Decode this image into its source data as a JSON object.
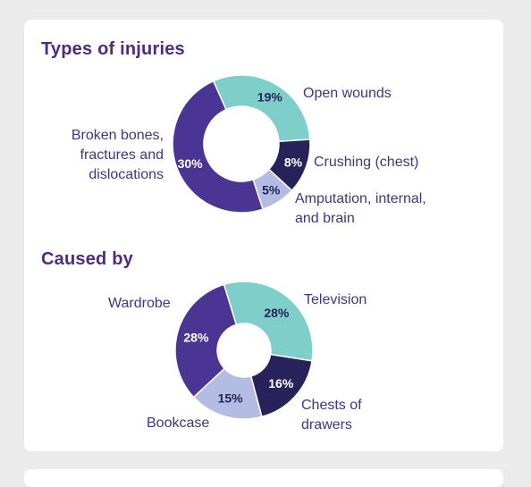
{
  "chart_data": [
    {
      "type": "pie",
      "title": "Types of injuries",
      "categories": [
        "Open wounds",
        "Crushing (chest)",
        "Amputation, internal, and brain",
        "Broken bones, fractures and dislocations"
      ],
      "values": [
        19,
        8,
        5,
        30
      ],
      "value_labels": [
        "19%",
        "8%",
        "5%",
        "30%"
      ],
      "colors": [
        "#7ecfc9",
        "#27235a",
        "#b3bde3",
        "#4a3494"
      ],
      "label_colors": [
        "#27235a",
        "#ffffff",
        "#27235a",
        "#ffffff"
      ],
      "legend": "labels beside slices"
    },
    {
      "type": "pie",
      "title": "Caused by",
      "categories": [
        "Television",
        "Chests of drawers",
        "Bookcase",
        "Wardrobe"
      ],
      "values": [
        28,
        16,
        15,
        28
      ],
      "value_labels": [
        "28%",
        "16%",
        "15%",
        "28%"
      ],
      "colors": [
        "#7ecfc9",
        "#27235a",
        "#b3bde3",
        "#4a3494"
      ],
      "label_colors": [
        "#27235a",
        "#ffffff",
        "#27235a",
        "#ffffff"
      ],
      "legend": "labels beside slices"
    }
  ]
}
